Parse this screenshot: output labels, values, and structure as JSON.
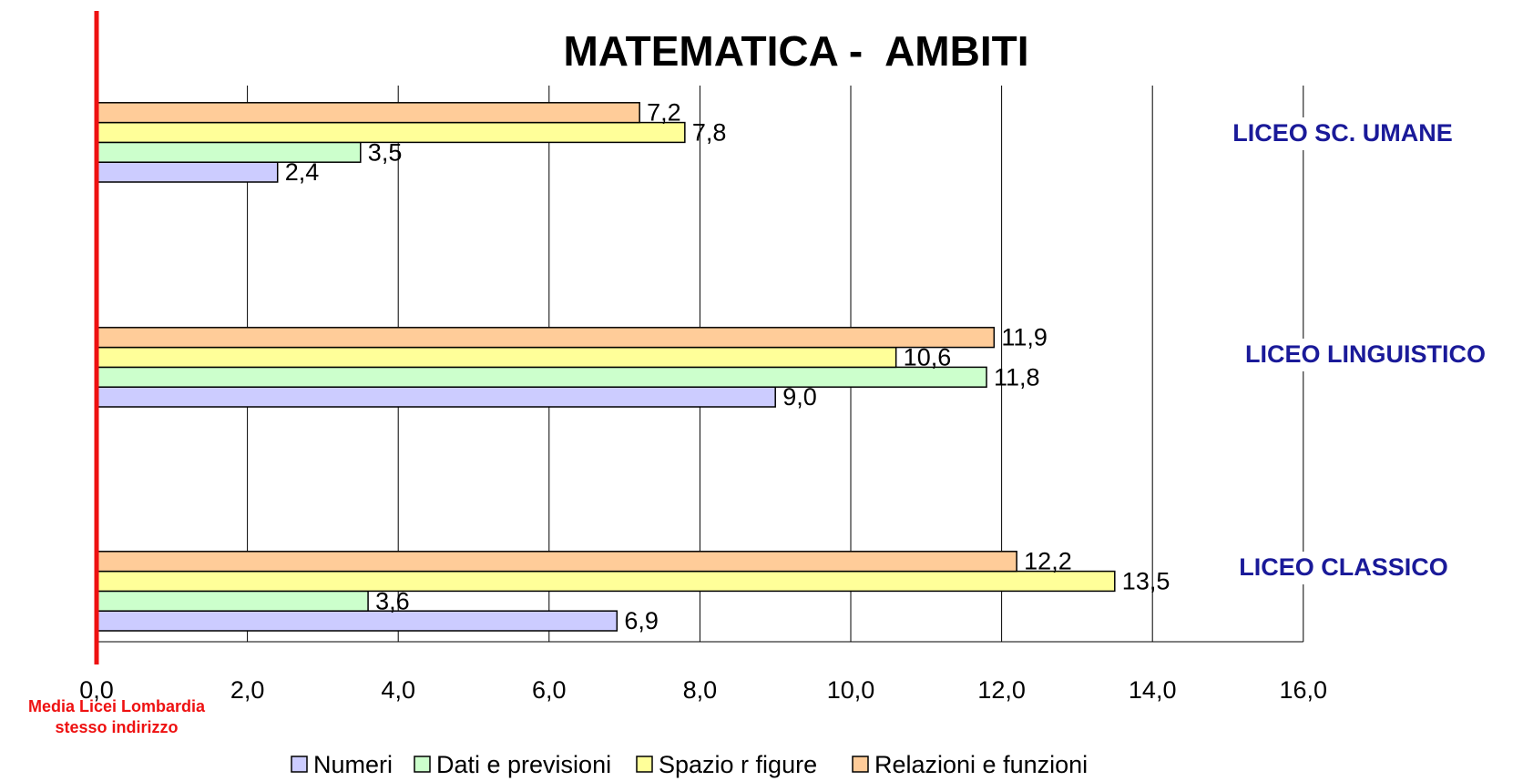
{
  "chart_data": {
    "type": "bar",
    "orientation": "horizontal",
    "title": "MATEMATICA -  AMBITI",
    "categories": [
      "LICEO SC. UMANE",
      "LICEO LINGUISTICO",
      "LICEO CLASSICO"
    ],
    "series": [
      {
        "name": "Numeri",
        "color": "#ccccff",
        "values": [
          2.4,
          9.0,
          6.9
        ]
      },
      {
        "name": "Dati e previsioni",
        "color": "#ccffcc",
        "values": [
          3.5,
          11.8,
          3.6
        ]
      },
      {
        "name": "Spazio r figure",
        "color": "#ffff99",
        "values": [
          7.8,
          10.6,
          13.5
        ]
      },
      {
        "name": "Relazioni e funzioni",
        "color": "#ffcc99",
        "values": [
          7.2,
          11.9,
          12.2
        ]
      }
    ],
    "value_labels": [
      [
        "2,4",
        "9,0",
        "6,9"
      ],
      [
        "3,5",
        "11,8",
        "3,6"
      ],
      [
        "7,8",
        "10,6",
        "13,5"
      ],
      [
        "7,2",
        "11,9",
        "12,2"
      ]
    ],
    "xlim": [
      0,
      16
    ],
    "xticks": [
      "0,0",
      "2,0",
      "4,0",
      "6,0",
      "8,0",
      "10,0",
      "12,0",
      "14,0",
      "16,0"
    ],
    "grid": true,
    "legend_position": "bottom",
    "reference_line": {
      "value": 0,
      "color": "#ee1111",
      "label_lines": [
        "Media Licei Lombardia",
        "stesso indirizzo"
      ]
    },
    "category_label_color": "#1a1a99"
  }
}
